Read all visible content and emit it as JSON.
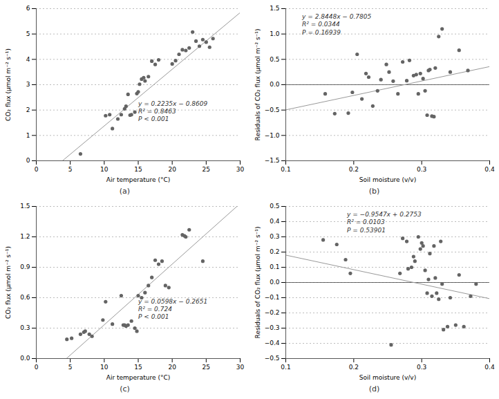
{
  "chart_data": [
    {
      "type": "scatter",
      "caption": "(a)",
      "x": [
        6.5,
        10.2,
        10.8,
        11.2,
        12.0,
        12.5,
        13.0,
        13.2,
        13.5,
        13.8,
        14.0,
        14.5,
        14.8,
        15.0,
        15.2,
        15.5,
        15.8,
        16.0,
        16.5,
        17.0,
        17.5,
        18.0,
        20.0,
        20.5,
        21.0,
        21.5,
        22.0,
        22.5,
        23.0,
        23.5,
        24.0,
        24.5,
        25.0,
        25.5,
        26.0
      ],
      "values": [
        0.27,
        1.78,
        1.82,
        1.27,
        1.65,
        1.82,
        2.05,
        2.15,
        2.62,
        1.8,
        1.82,
        1.92,
        2.65,
        2.72,
        3.02,
        3.22,
        3.28,
        3.15,
        3.32,
        3.93,
        3.8,
        3.98,
        3.82,
        3.95,
        4.2,
        4.38,
        4.35,
        4.45,
        5.08,
        4.72,
        4.52,
        4.78,
        4.68,
        4.48,
        4.82
      ],
      "color": "#646464",
      "regression": {
        "slope": 0.2235,
        "intercept": -0.8609,
        "color": "#999999"
      },
      "annotations": [
        "y = 0.2235x − 0.8609",
        "R² = 0.8463",
        "P < 0.001"
      ],
      "xlabel": "Air temperature (°C)",
      "ylabel": "CO₂ flux (μmol m⁻² s⁻¹)",
      "xlim": [
        0,
        30
      ],
      "ylim": [
        0,
        6
      ],
      "xticks": [
        0,
        5,
        10,
        15,
        20,
        25,
        30
      ],
      "yticks": [
        0,
        1,
        2,
        3,
        4,
        5,
        6
      ],
      "grid": "y"
    },
    {
      "type": "scatter",
      "caption": "(b)",
      "x": [
        0.158,
        0.172,
        0.192,
        0.198,
        0.205,
        0.212,
        0.218,
        0.222,
        0.228,
        0.235,
        0.24,
        0.248,
        0.252,
        0.258,
        0.265,
        0.272,
        0.278,
        0.282,
        0.288,
        0.292,
        0.295,
        0.298,
        0.302,
        0.305,
        0.308,
        0.31,
        0.312,
        0.315,
        0.318,
        0.32,
        0.325,
        0.33,
        0.342,
        0.355,
        0.368
      ],
      "values": [
        -0.18,
        -0.57,
        -0.56,
        -0.15,
        0.6,
        -0.28,
        0.22,
        0.15,
        -0.42,
        -0.12,
        0.1,
        0.4,
        0.25,
        0.07,
        -0.18,
        0.45,
        0.08,
        0.48,
        0.18,
        0.2,
        -0.18,
        0.22,
        0.12,
        -0.12,
        -0.6,
        0.28,
        0.3,
        -0.62,
        -0.63,
        0.33,
        0.95,
        1.1,
        0.25,
        0.68,
        0.28
      ],
      "color": "#646464",
      "regression": {
        "slope": 2.8448,
        "intercept": -0.7805,
        "color": "#999999"
      },
      "hline": 0,
      "annotations": [
        "y = 2.8448x − 0.7805",
        "R² = 0.0344",
        "P = 0.16939"
      ],
      "xlabel": "Soil moisture (v/v)",
      "ylabel": "Residuals of CO₂ flux (μmol m⁻² s⁻¹)",
      "xlim": [
        0.1,
        0.4
      ],
      "ylim": [
        -1.5,
        1.5
      ],
      "xticks": [
        0.1,
        0.2,
        0.3,
        0.4
      ],
      "yticks": [
        {
          "value": -1.5,
          "label": "−1.5"
        },
        {
          "value": -1.0,
          "label": "−1.0"
        },
        {
          "value": -0.5,
          "label": "−0.5"
        },
        {
          "value": 0,
          "label": "0.0"
        },
        0.5,
        {
          "value": 1.0,
          "label": "1.0"
        },
        1.5
      ],
      "grid": "y"
    },
    {
      "type": "scatter",
      "caption": "(c)",
      "x": [
        4.5,
        5.2,
        6.5,
        7.0,
        7.2,
        7.8,
        8.2,
        9.8,
        10.2,
        11.2,
        12.5,
        12.8,
        13.0,
        13.2,
        13.5,
        14.0,
        14.5,
        14.8,
        15.0,
        15.5,
        16.0,
        16.5,
        17.0,
        17.5,
        18.0,
        18.5,
        19.0,
        19.5,
        21.5,
        21.8,
        22.0,
        22.5,
        24.5
      ],
      "values": [
        0.19,
        0.2,
        0.24,
        0.26,
        0.27,
        0.24,
        0.22,
        0.38,
        0.56,
        0.34,
        0.62,
        0.33,
        0.33,
        0.32,
        0.33,
        0.37,
        0.3,
        0.27,
        0.62,
        0.6,
        0.65,
        0.72,
        0.8,
        0.97,
        0.93,
        0.96,
        0.72,
        0.7,
        1.22,
        1.21,
        1.2,
        1.27,
        0.96
      ],
      "color": "#646464",
      "regression": {
        "slope": 0.0598,
        "intercept": -0.2651,
        "color": "#999999"
      },
      "annotations": [
        "y = 0.0598x − 0.2651",
        "R² = 0.724",
        "P < 0.001"
      ],
      "xlabel": "Air temperature (°C)",
      "ylabel": "CO₂ flux (μmol m⁻² s⁻¹)",
      "xlim": [
        0,
        30
      ],
      "ylim": [
        0,
        1.5
      ],
      "xticks": [
        0,
        5,
        10,
        15,
        20,
        25,
        30
      ],
      "yticks": [
        {
          "value": 0,
          "label": "0.0"
        },
        0.3,
        0.6,
        0.9,
        1.2,
        1.5
      ],
      "grid": "y"
    },
    {
      "type": "scatter",
      "caption": "(d)",
      "x": [
        0.155,
        0.175,
        0.188,
        0.195,
        0.255,
        0.268,
        0.272,
        0.278,
        0.28,
        0.285,
        0.288,
        0.29,
        0.295,
        0.298,
        0.3,
        0.302,
        0.305,
        0.308,
        0.31,
        0.312,
        0.315,
        0.318,
        0.32,
        0.322,
        0.325,
        0.328,
        0.33,
        0.332,
        0.338,
        0.342,
        0.35,
        0.355,
        0.362,
        0.372,
        0.38
      ],
      "values": [
        0.28,
        0.25,
        0.15,
        0.06,
        -0.41,
        0.06,
        0.29,
        0.27,
        0.09,
        0.1,
        0.17,
        0.14,
        0.3,
        0.22,
        0.26,
        0.24,
        0.08,
        -0.07,
        0.02,
        0.19,
        -0.09,
        0.24,
        0.03,
        -0.07,
        -0.11,
        0.27,
        -0.01,
        -0.31,
        -0.29,
        -0.1,
        -0.28,
        0.05,
        -0.29,
        -0.09,
        -0.01
      ],
      "color": "#646464",
      "regression": {
        "slope": -0.9547,
        "intercept": 0.2753,
        "color": "#999999"
      },
      "hline": 0,
      "annotations": [
        "y = −0.9547x + 0.2753",
        "R² = 0.0103",
        "P = 0.53901"
      ],
      "xlabel": "Soil moisture (v/v)",
      "ylabel": "Residuals of CO₂ flux (μmol m⁻² s⁻¹)",
      "xlim": [
        0.1,
        0.4
      ],
      "ylim": [
        -0.5,
        0.5
      ],
      "xticks": [
        0.1,
        0.2,
        0.3,
        0.4
      ],
      "yticks": [
        {
          "value": -0.5,
          "label": "−0.5"
        },
        {
          "value": -0.4,
          "label": "−0.4"
        },
        {
          "value": -0.3,
          "label": "−0.3"
        },
        {
          "value": -0.2,
          "label": "−0.2"
        },
        {
          "value": -0.1,
          "label": "−0.1"
        },
        {
          "value": 0,
          "label": "0.0"
        },
        0.1,
        0.2,
        0.3,
        0.4,
        0.5
      ],
      "grid": "y"
    }
  ]
}
